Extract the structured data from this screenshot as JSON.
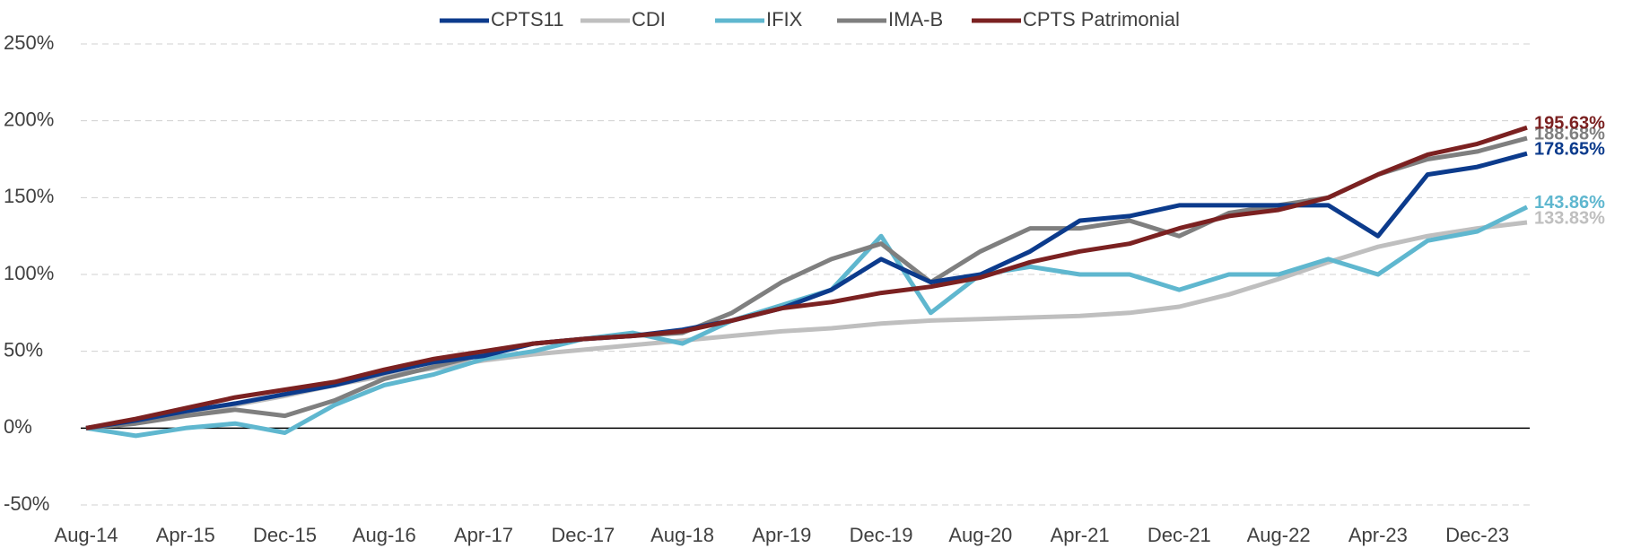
{
  "chart_data": {
    "type": "line",
    "categories": [
      "Aug-14",
      null,
      "Apr-15",
      null,
      "Dec-15",
      null,
      "Aug-16",
      null,
      "Apr-17",
      null,
      "Dec-17",
      null,
      "Aug-18",
      null,
      "Apr-19",
      null,
      "Dec-19",
      null,
      "Aug-20",
      null,
      "Apr-21",
      null,
      "Dec-21",
      null,
      "Aug-22",
      null,
      "Apr-23",
      null,
      "Dec-23",
      null
    ],
    "ylim": [
      -50,
      250
    ],
    "yticks": [
      {
        "value": -50,
        "label": "-50%"
      },
      {
        "value": 0,
        "label": "0%"
      },
      {
        "value": 50,
        "label": "50%"
      },
      {
        "value": 100,
        "label": "100%"
      },
      {
        "value": 150,
        "label": "150%"
      },
      {
        "value": 200,
        "label": "200%"
      },
      {
        "value": 250,
        "label": "250%"
      }
    ],
    "grid": true,
    "legend": "top",
    "series": [
      {
        "name": "CPTS11",
        "color": "#0c3b8c",
        "values": [
          0,
          5,
          11,
          16,
          22,
          28,
          36,
          43,
          47,
          55,
          58,
          60,
          64,
          70,
          78,
          90,
          110,
          95,
          100,
          115,
          135,
          138,
          145,
          145,
          145,
          145,
          125,
          165,
          170,
          178.65
        ],
        "value_labels": [
          null,
          null,
          null,
          null,
          null,
          null,
          null,
          null,
          null,
          null,
          null,
          null,
          null,
          null,
          null,
          null,
          null,
          null,
          null,
          null,
          null,
          null,
          null,
          null,
          null,
          null,
          null,
          null,
          null,
          "178.65%"
        ]
      },
      {
        "name": "CDI",
        "color": "#bfbfbf",
        "values": [
          0,
          4,
          9,
          15,
          21,
          28,
          34,
          39,
          44,
          48,
          51,
          54,
          57,
          60,
          63,
          65,
          68,
          70,
          71,
          72,
          73,
          75,
          79,
          87,
          97,
          108,
          118,
          125,
          130,
          133.83
        ],
        "value_labels": [
          null,
          null,
          null,
          null,
          null,
          null,
          null,
          null,
          null,
          null,
          null,
          null,
          null,
          null,
          null,
          null,
          null,
          null,
          null,
          null,
          null,
          null,
          null,
          null,
          null,
          null,
          null,
          null,
          null,
          "133.83%"
        ]
      },
      {
        "name": "IFIX",
        "color": "#5fb7cf",
        "values": [
          0,
          -5,
          0,
          3,
          -3,
          15,
          28,
          35,
          45,
          50,
          58,
          62,
          55,
          70,
          80,
          90,
          125,
          75,
          100,
          105,
          100,
          100,
          90,
          100,
          100,
          110,
          100,
          122,
          128,
          143.86
        ],
        "value_labels": [
          null,
          null,
          null,
          null,
          null,
          null,
          null,
          null,
          null,
          null,
          null,
          null,
          null,
          null,
          null,
          null,
          null,
          null,
          null,
          null,
          null,
          null,
          null,
          null,
          null,
          null,
          null,
          null,
          null,
          "143.86%"
        ]
      },
      {
        "name": "IMA-B",
        "color": "#7f7f7f",
        "values": [
          0,
          3,
          8,
          12,
          8,
          18,
          32,
          40,
          48,
          55,
          58,
          60,
          62,
          75,
          95,
          110,
          120,
          95,
          115,
          130,
          130,
          135,
          125,
          140,
          145,
          150,
          165,
          175,
          180,
          188.68
        ],
        "value_labels": [
          null,
          null,
          null,
          null,
          null,
          null,
          null,
          null,
          null,
          null,
          null,
          null,
          null,
          null,
          null,
          null,
          null,
          null,
          null,
          null,
          null,
          null,
          null,
          null,
          null,
          null,
          null,
          null,
          null,
          "188.68%"
        ]
      },
      {
        "name": "CPTS Patrimonial",
        "color": "#7b2121",
        "values": [
          0,
          6,
          13,
          20,
          25,
          30,
          38,
          45,
          50,
          55,
          58,
          60,
          63,
          70,
          78,
          82,
          88,
          92,
          98,
          108,
          115,
          120,
          130,
          138,
          142,
          150,
          165,
          178,
          185,
          195.63
        ],
        "value_labels": [
          null,
          null,
          null,
          null,
          null,
          null,
          null,
          null,
          null,
          null,
          null,
          null,
          null,
          null,
          null,
          null,
          null,
          null,
          null,
          null,
          null,
          null,
          null,
          null,
          null,
          null,
          null,
          null,
          null,
          "195.63%"
        ]
      }
    ]
  }
}
